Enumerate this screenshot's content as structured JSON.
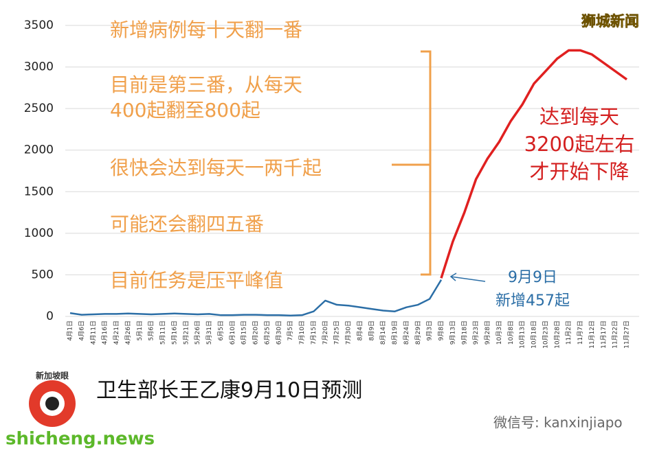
{
  "chart_data": {
    "type": "line",
    "categories": [
      "4月1日",
      "4月6日",
      "4月11日",
      "4月16日",
      "4月21日",
      "4月26日",
      "5月1日",
      "5月6日",
      "5月11日",
      "5月16日",
      "5月21日",
      "5月26日",
      "5月31日",
      "6月5日",
      "6月10日",
      "6月15日",
      "6月20日",
      "6月25日",
      "6月30日",
      "7月5日",
      "7月10日",
      "7月15日",
      "7月20日",
      "7月25日",
      "7月30日",
      "8月4日",
      "8月9日",
      "8月14日",
      "8月19日",
      "8月24日",
      "8月29日",
      "9月3日",
      "9月8日",
      "9月13日",
      "9月18日",
      "9月23日",
      "9月28日",
      "10月3日",
      "10月8日",
      "10月13日",
      "10月18日",
      "10月23日",
      "10月28日",
      "11月2日",
      "11月7日",
      "11月12日",
      "11月17日",
      "11月22日",
      "11月27日"
    ],
    "series": [
      {
        "color": "#2b6ea6",
        "values": [
          40,
          20,
          25,
          30,
          30,
          35,
          30,
          25,
          30,
          35,
          30,
          25,
          30,
          15,
          15,
          20,
          20,
          15,
          15,
          10,
          15,
          60,
          190,
          140,
          130,
          110,
          90,
          70,
          60,
          110,
          140,
          210,
          440,
          null,
          null,
          null,
          null,
          null,
          null,
          null,
          null,
          null,
          null,
          null,
          null,
          null,
          null,
          null,
          null
        ]
      },
      {
        "color": "#e02020",
        "values": [
          null,
          null,
          null,
          null,
          null,
          null,
          null,
          null,
          null,
          null,
          null,
          null,
          null,
          null,
          null,
          null,
          null,
          null,
          null,
          null,
          null,
          null,
          null,
          null,
          null,
          null,
          null,
          null,
          null,
          null,
          null,
          null,
          460,
          900,
          1250,
          1650,
          1900,
          2100,
          2350,
          2550,
          2800,
          2950,
          3100,
          3200,
          3200,
          3150,
          3050,
          2950,
          2850
        ]
      }
    ],
    "ylim": [
      0,
      3500
    ],
    "yticks": [
      0,
      500,
      1000,
      1500,
      2000,
      2500,
      3000,
      3500
    ],
    "grid": true,
    "notes": [
      {
        "color": "#f0a04b",
        "lines": [
          "新增病例每十天翻一番"
        ]
      },
      {
        "color": "#f0a04b",
        "lines": [
          "目前是第三番，从每天",
          "400起翻至800起"
        ]
      },
      {
        "color": "#f0a04b",
        "lines": [
          "很快会达到每天一两千起"
        ]
      },
      {
        "color": "#f0a04b",
        "lines": [
          "可能还会翻四五番"
        ]
      },
      {
        "color": "#f0a04b",
        "lines": [
          "目前任务是压平峰值"
        ]
      },
      {
        "color": "#d42020",
        "lines": [
          "达到每天",
          "3200起左右",
          "才开始下降"
        ]
      },
      {
        "color": "#2b6ea6",
        "lines": [
          "9月9日",
          "新增457起"
        ]
      }
    ],
    "caption": "卫生部长王乙康9月10日预测"
  },
  "watermarks": {
    "brand": "狮城新闻",
    "logo": "新加坡眼",
    "wechat": "微信号: kanxinjiapo",
    "site": "shicheng.news"
  }
}
